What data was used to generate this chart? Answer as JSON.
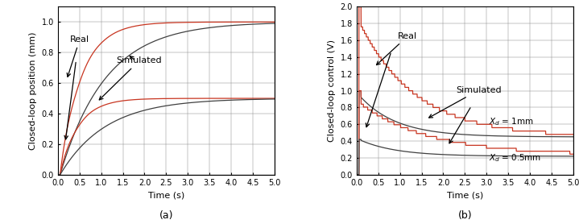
{
  "fig_width": 7.19,
  "fig_height": 2.78,
  "dpi": 100,
  "subplot_a": {
    "xlabel": "Time (s)",
    "ylabel": "Closed-loop position (mm)",
    "xlim": [
      0,
      5
    ],
    "ylim": [
      0,
      1.1
    ],
    "yticks": [
      0,
      0.2,
      0.4,
      0.6,
      0.8,
      1.0
    ],
    "xticks": [
      0,
      0.5,
      1.0,
      1.5,
      2.0,
      2.5,
      3.0,
      3.5,
      4.0,
      4.5,
      5.0
    ],
    "label": "(a)"
  },
  "subplot_b": {
    "xlabel": "Time (s)",
    "ylabel": "Closed-loop control (V)",
    "xlim": [
      0,
      5
    ],
    "ylim": [
      0,
      2.0
    ],
    "yticks": [
      0,
      0.2,
      0.4,
      0.6,
      0.8,
      1.0,
      1.2,
      1.4,
      1.6,
      1.8,
      2.0
    ],
    "xticks": [
      0,
      0.5,
      1.0,
      1.5,
      2.0,
      2.5,
      3.0,
      3.5,
      4.0,
      4.5,
      5.0
    ],
    "label": "(b)"
  },
  "colors": {
    "real": "#C83520",
    "simulated": "#404040"
  },
  "tick_fontsize": 7,
  "label_fontsize": 8,
  "annot_fontsize": 8
}
